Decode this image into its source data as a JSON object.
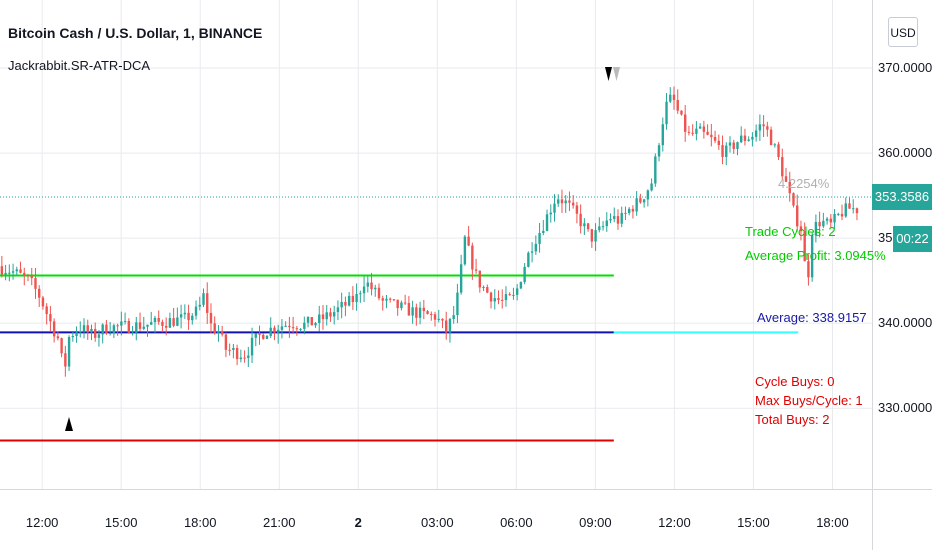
{
  "header": {
    "symbol_title": "Bitcoin Cash / U.S. Dollar, 1, BINANCE",
    "indicator_name": "Jackrabbit.SR-ATR-DCA",
    "currency_button": "USD"
  },
  "price_scale": {
    "current_price": "353.3586",
    "countdown": "00:22"
  },
  "annotations": {
    "pct_label": "4.2254%",
    "trade_cycles": "Trade Cycles: 2",
    "average_profit": "Average Profit: 3.0945%",
    "average": "Average: 338.9157",
    "cycle_buys": "Cycle Buys: 0",
    "max_buys": "Max Buys/Cycle: 1",
    "total_buys": "Total Buys: 2"
  },
  "colors": {
    "up": "#26a69a",
    "down": "#ef5350",
    "green_line": "#00e000",
    "blue_line": "#1212b0",
    "cyan_line": "#33ffff",
    "red_line": "#e00000",
    "text_green": "#00cc00",
    "text_blue": "#1a1aa8",
    "text_red": "#e00000"
  },
  "chart_data": {
    "type": "candlestick",
    "title": "Bitcoin Cash / U.S. Dollar, 1, BINANCE",
    "y_ticks": [
      "330.0000",
      "340.0000",
      "350.0000",
      "360.0000",
      "370.0000"
    ],
    "x_ticks": [
      "12:00",
      "15:00",
      "18:00",
      "21:00",
      "2",
      "03:00",
      "06:00",
      "09:00",
      "12:00",
      "15:00",
      "18:00"
    ],
    "ylim": [
      320.5,
      378
    ],
    "xlim": [
      10.4,
      43.5
    ],
    "grid": true,
    "hlines": [
      {
        "name": "resistance",
        "value": 345.6,
        "from": 10.4,
        "to": 33.7,
        "color": "#00e000"
      },
      {
        "name": "average",
        "value": 338.92,
        "from": 10.4,
        "to": 33.7,
        "color": "#1212b0"
      },
      {
        "name": "average-extension",
        "value": 338.92,
        "from": 33.7,
        "to": 40.7,
        "color": "#33ffff"
      },
      {
        "name": "stop",
        "value": 326.2,
        "from": 10.4,
        "to": 33.7,
        "color": "#e00000"
      }
    ],
    "price_path": [
      [
        10.4,
        346.7
      ],
      [
        11.0,
        346.0
      ],
      [
        11.6,
        345.0
      ],
      [
        12.0,
        343.0
      ],
      [
        12.4,
        340.0
      ],
      [
        12.7,
        338.0
      ],
      [
        12.9,
        334.0
      ],
      [
        13.1,
        338.5
      ],
      [
        13.5,
        339.5
      ],
      [
        14.0,
        338.5
      ],
      [
        14.5,
        339.5
      ],
      [
        15.2,
        339.6
      ],
      [
        16.0,
        339.8
      ],
      [
        16.8,
        340.2
      ],
      [
        17.5,
        340.5
      ],
      [
        18.0,
        341.5
      ],
      [
        18.2,
        343.2
      ],
      [
        18.5,
        339.5
      ],
      [
        18.8,
        339.0
      ],
      [
        19.0,
        337.0
      ],
      [
        19.5,
        336.5
      ],
      [
        19.8,
        336.3
      ],
      [
        20.0,
        337.5
      ],
      [
        20.5,
        339.0
      ],
      [
        21.0,
        339.6
      ],
      [
        21.5,
        340.0
      ],
      [
        22.0,
        339.8
      ],
      [
        22.5,
        340.2
      ],
      [
        23.0,
        341.0
      ],
      [
        23.5,
        342.0
      ],
      [
        24.0,
        343.0
      ],
      [
        24.3,
        345.0
      ],
      [
        24.6,
        344.0
      ],
      [
        25.0,
        342.5
      ],
      [
        25.5,
        342.0
      ],
      [
        26.0,
        341.5
      ],
      [
        26.5,
        341.0
      ],
      [
        27.0,
        340.8
      ],
      [
        27.2,
        340.0
      ],
      [
        27.4,
        339.0
      ],
      [
        27.7,
        341.0
      ],
      [
        27.9,
        344.0
      ],
      [
        28.1,
        350.0
      ],
      [
        28.3,
        348.0
      ],
      [
        28.6,
        345.0
      ],
      [
        29.0,
        343.5
      ],
      [
        29.5,
        342.5
      ],
      [
        30.0,
        343.0
      ],
      [
        30.4,
        347.0
      ],
      [
        30.7,
        349.5
      ],
      [
        31.0,
        351.0
      ],
      [
        31.3,
        353.0
      ],
      [
        31.6,
        355.0
      ],
      [
        32.0,
        354.0
      ],
      [
        32.5,
        352.0
      ],
      [
        32.9,
        350.0
      ],
      [
        33.3,
        351.0
      ],
      [
        33.6,
        352.5
      ],
      [
        34.0,
        352.0
      ],
      [
        34.4,
        353.5
      ],
      [
        34.8,
        354.5
      ],
      [
        35.2,
        356.5
      ],
      [
        35.4,
        360.0
      ],
      [
        35.6,
        363.5
      ],
      [
        35.8,
        366.0
      ],
      [
        36.0,
        366.5
      ],
      [
        36.3,
        364.0
      ],
      [
        36.6,
        362.0
      ],
      [
        37.0,
        362.5
      ],
      [
        37.5,
        361.5
      ],
      [
        38.0,
        360.0
      ],
      [
        38.5,
        361.5
      ],
      [
        39.0,
        362.0
      ],
      [
        39.4,
        363.5
      ],
      [
        39.7,
        362.0
      ],
      [
        40.0,
        359.5
      ],
      [
        40.3,
        356.5
      ],
      [
        40.6,
        353.0
      ],
      [
        40.9,
        351.0
      ],
      [
        41.1,
        344.0
      ],
      [
        41.3,
        351.0
      ],
      [
        41.6,
        352.0
      ],
      [
        42.0,
        351.5
      ],
      [
        42.4,
        353.0
      ],
      [
        42.7,
        353.5
      ],
      [
        43.0,
        353.4
      ]
    ]
  }
}
